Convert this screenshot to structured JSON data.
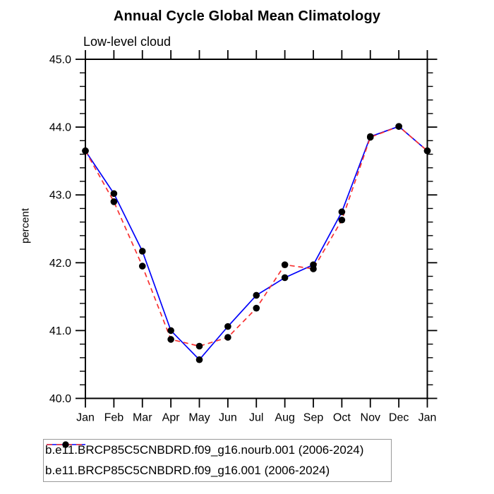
{
  "title": "Annual Cycle Global Mean Climatology",
  "subtitle": "Low-level cloud",
  "ylabel": "percent",
  "colors": {
    "series1": "#0000fa",
    "series2": "#f83030",
    "marker": "#000000",
    "axis": "#000000",
    "legend_border": "#999999"
  },
  "legend": {
    "entries": [
      {
        "label": "b.e11.BRCP85C5CNBDRD.f09_g16.nourb.001 (2006-2024)",
        "color": "#0000fa",
        "style": "solid"
      },
      {
        "label": "b.e11.BRCP85C5CNBDRD.f09_g16.001 (2006-2024)",
        "color": "#f83030",
        "style": "dashed"
      }
    ]
  },
  "chart_data": {
    "type": "line",
    "title": "Annual Cycle Global Mean Climatology",
    "subtitle": "Low-level cloud",
    "xlabel": "",
    "ylabel": "percent",
    "categories": [
      "Jan",
      "Feb",
      "Mar",
      "Apr",
      "May",
      "Jun",
      "Jul",
      "Aug",
      "Sep",
      "Oct",
      "Nov",
      "Dec",
      "Jan"
    ],
    "series": [
      {
        "name": "b.e11.BRCP85C5CNBDRD.f09_g16.nourb.001 (2006-2024)",
        "color": "#0000fa",
        "line_style": "solid",
        "marker": "circle",
        "values": [
          43.65,
          43.02,
          42.17,
          41.0,
          40.57,
          41.06,
          41.52,
          41.78,
          41.97,
          42.75,
          43.86,
          44.01,
          43.65
        ]
      },
      {
        "name": "b.e11.BRCP85C5CNBDRD.f09_g16.001 (2006-2024)",
        "color": "#f83030",
        "line_style": "dashed",
        "marker": "circle",
        "values": [
          43.65,
          42.9,
          41.95,
          40.87,
          40.77,
          40.9,
          41.33,
          41.97,
          41.91,
          42.63,
          43.85,
          44.01,
          43.65
        ]
      }
    ],
    "ylim": [
      40.0,
      45.0
    ],
    "yticks": [
      40.0,
      41.0,
      42.0,
      43.0,
      44.0,
      45.0
    ],
    "ytick_labels": [
      "40.0",
      "41.0",
      "42.0",
      "43.0",
      "44.0",
      "45.0"
    ],
    "y_minor_tick_interval": 0.2,
    "grid": false,
    "frame": "box-with-outward-ticks",
    "legend_position": "bottom"
  }
}
